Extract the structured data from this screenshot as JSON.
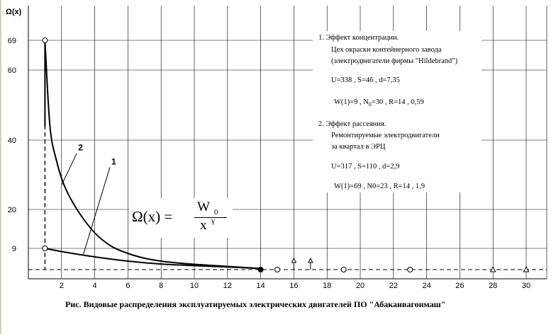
{
  "chart_data": {
    "type": "line",
    "ylabel": "Ω(x)",
    "xlim": [
      0,
      31
    ],
    "ylim": [
      -1,
      75
    ],
    "x_ticks": [
      2,
      4,
      6,
      8,
      10,
      12,
      14,
      16,
      18,
      20,
      22,
      24,
      26,
      28,
      30
    ],
    "y_ticks": [
      9,
      20,
      40,
      60,
      69
    ],
    "grid": true,
    "series": [
      {
        "name": "2",
        "x": [
          1,
          1.3,
          1.7,
          2.2,
          3,
          4,
          5,
          6,
          7,
          8,
          9,
          10,
          11,
          12,
          13,
          14
        ],
        "values": [
          69,
          44,
          34,
          26.5,
          19.5,
          13.4,
          9.6,
          7.1,
          5.3,
          4.2,
          3.5,
          3.0,
          2.6,
          2.2,
          1.8,
          1.4
        ]
      },
      {
        "name": "1",
        "x": [
          1,
          2,
          4,
          6,
          8,
          10,
          12,
          14
        ],
        "values": [
          9,
          7.8,
          5.8,
          4.2,
          3.1,
          2.5,
          2.0,
          1.4
        ]
      }
    ],
    "baseline_y": 1.0,
    "vline_x": 1,
    "markers": [
      {
        "x": 1,
        "y": 69,
        "shape": "circle"
      },
      {
        "x": 1,
        "y": 9,
        "shape": "circle"
      },
      {
        "x": 14,
        "y": 1.0,
        "shape": "filled-circle"
      },
      {
        "x": 15,
        "y": 1.0,
        "shape": "circle"
      },
      {
        "x": 19,
        "y": 1.0,
        "shape": "circle"
      },
      {
        "x": 23,
        "y": 1.0,
        "shape": "circle"
      },
      {
        "x": 28,
        "y": 1.0,
        "shape": "triangle"
      },
      {
        "x": 30,
        "y": 1.0,
        "shape": "triangle"
      },
      {
        "x": 16,
        "y": 1.0,
        "shape": "arrow"
      },
      {
        "x": 17,
        "y": 1.0,
        "shape": "arrow"
      }
    ],
    "annotations": [
      {
        "text": "2",
        "label_x": 3.0,
        "label_y": 37,
        "to_x": 2.0,
        "to_y": 27
      },
      {
        "text": "1",
        "label_x": 5.0,
        "label_y": 33,
        "to_x": 3.3,
        "to_y": 6.5
      }
    ]
  },
  "formula": {
    "lhs": "Ω(x) =",
    "numerator": "W",
    "num_sub": "0",
    "denominator": "x",
    "den_sup": "γ"
  },
  "legend": {
    "item1_title": "1.  Эффект концентрации.",
    "item1_line2": "Цех окраски контейнерного завода",
    "item1_line3": "(электродвигатели фирмы \"Hildebrand\")",
    "item1_params1": "U=338 ,   S=46 ,   d=7,35",
    "item1_params2a": "W(1)=9 ,   N",
    "item1_params2_sub": "0",
    "item1_params2b": "=30 ,   R=14 ,    0,59",
    "item2_title": "2.  Эффект рассеяния.",
    "item2_line2": "Ремонтируемые электродвигатели",
    "item2_line3": "за квартал в  ЭРЦ",
    "item2_params1": "U=317 ,   S=110 ,   d=2,9",
    "item2_params2": "W(1)=69 ,   N0=23 ,   R=14 ,    1,9"
  },
  "caption": "Рис.   Видовые  распределения  эксплуатируемых  электрических  двигателей  ПО  \"Абаканвагонмаш\""
}
